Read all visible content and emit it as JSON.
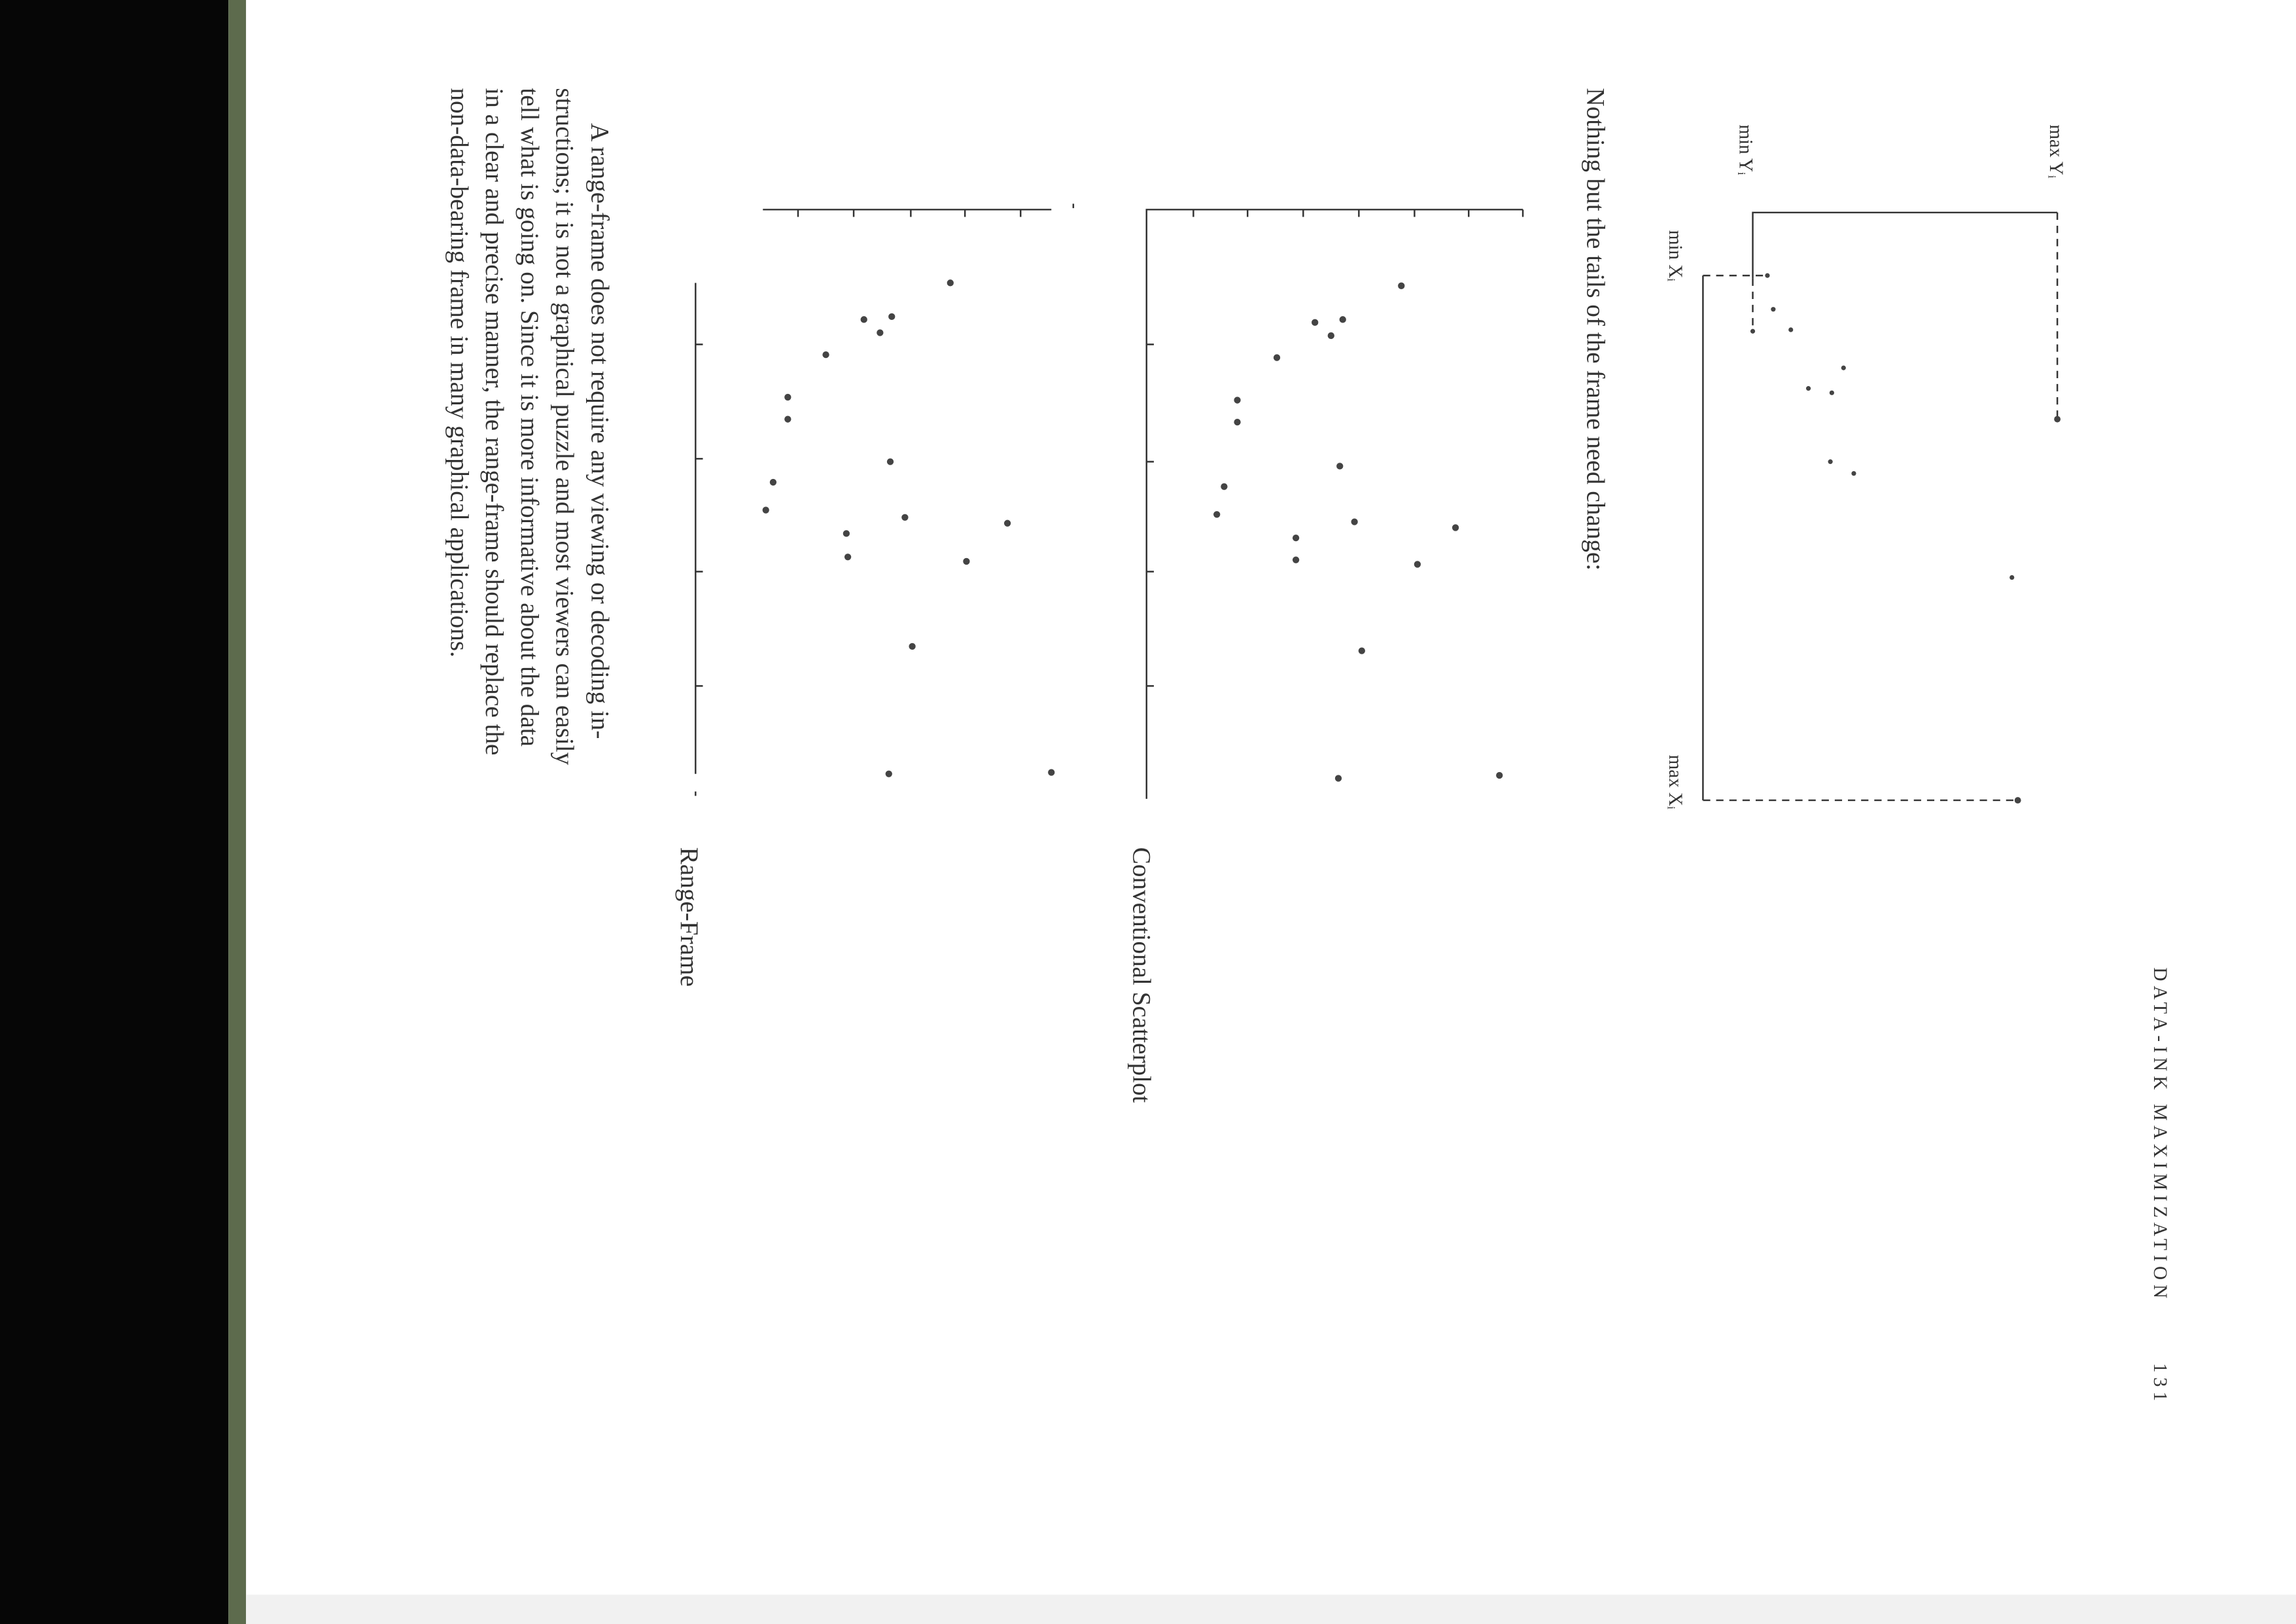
{
  "header": {
    "title": "DATA-INK MAXIMIZATION",
    "page_number": "131"
  },
  "range_frame_diagram": {
    "labels": {
      "max_y": "max Yᵢ",
      "min_y": "min Yᵢ",
      "min_x": "min Xᵢ",
      "max_x": "max Xᵢ"
    }
  },
  "lead_in": "Nothing but the tails of the frame need change:",
  "figures": {
    "conventional_caption": "Conventional Scatterplot",
    "range_frame_caption": "Range-Frame"
  },
  "paragraph": {
    "lines": [
      "A range-frame does not require any viewing or decoding in-",
      "structions; it is not a graphical puzzle and most viewers can easily",
      "tell what is going on. Since it is more informative about the data",
      "in a clear and precise manner, the range-frame should replace the",
      "non-data-bearing frame in many graphical applications."
    ]
  }
}
